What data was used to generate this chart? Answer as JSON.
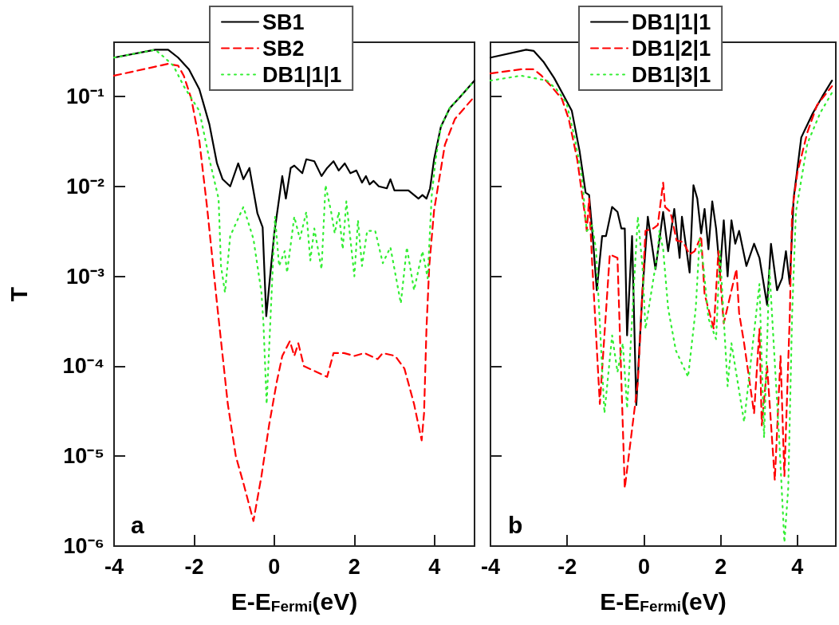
{
  "chart_data": [
    {
      "type": "line",
      "xlabel": "E-E$_{Fermi}$(eV)",
      "ylabel": "T",
      "annotations": [
        "a"
      ],
      "log": "y",
      "grid": false,
      "legend": "top",
      "xlim": [
        -4,
        5
      ],
      "xticks": [
        -4,
        -2,
        0,
        2,
        4
      ],
      "ylim": [
        1e-06,
        0.4
      ],
      "yticks": [
        {
          "value": 1e-06,
          "label": "10⁻⁶"
        },
        {
          "value": 1e-05,
          "label": "10⁻⁵"
        },
        {
          "value": 0.0001,
          "label": "10⁻⁴"
        },
        {
          "value": 0.001,
          "label": "10⁻³"
        },
        {
          "value": 0.01,
          "label": "10⁻²"
        },
        {
          "value": 0.1,
          "label": "10⁻¹"
        }
      ],
      "series": [
        {
          "name": "SB1",
          "color": "#000000",
          "line_style": "solid",
          "x": [
            -4,
            -2.97,
            -2.65,
            -2.4,
            -2.13,
            -1.87,
            -1.62,
            -1.43,
            -1.29,
            -1.1,
            -0.9,
            -0.77,
            -0.62,
            -0.42,
            -0.29,
            -0.2,
            0,
            0.2,
            0.29,
            0.41,
            0.5,
            0.7,
            0.8,
            1.0,
            1.18,
            1.32,
            1.48,
            1.61,
            1.76,
            1.9,
            2.05,
            2.19,
            2.29,
            2.38,
            2.48,
            2.61,
            2.81,
            2.9,
            3.0,
            3.16,
            3.35,
            3.49,
            3.6,
            3.7,
            3.8,
            3.89,
            3.99,
            4.16,
            4.38,
            4.65,
            5
          ],
          "values": [
            0.27,
            0.33,
            0.33,
            0.27,
            0.2,
            0.12,
            0.049,
            0.018,
            0.012,
            0.01,
            0.018,
            0.012,
            0.016,
            0.005,
            0.0035,
            0.00036,
            0.003,
            0.013,
            0.0073,
            0.016,
            0.017,
            0.014,
            0.02,
            0.019,
            0.013,
            0.016,
            0.019,
            0.015,
            0.018,
            0.014,
            0.015,
            0.011,
            0.013,
            0.0105,
            0.0115,
            0.01,
            0.0095,
            0.012,
            0.009,
            0.009,
            0.009,
            0.008,
            0.0073,
            0.008,
            0.0073,
            0.0095,
            0.02,
            0.046,
            0.074,
            0.1,
            0.15
          ]
        },
        {
          "name": "SB2",
          "color": "#ff0000",
          "line_style": "dashed",
          "x": [
            -4,
            -2.65,
            -2.4,
            -2.26,
            -2.07,
            -1.87,
            -1.68,
            -1.43,
            -1.16,
            -0.96,
            -0.77,
            -0.52,
            -0.32,
            -0.13,
            0.06,
            0.2,
            0.39,
            0.5,
            0.6,
            0.74,
            0.97,
            1.32,
            1.48,
            1.74,
            2.0,
            2.25,
            2.58,
            2.71,
            3.02,
            3.25,
            3.49,
            3.68,
            3.74,
            3.8,
            3.87,
            3.99,
            4.26,
            4.51,
            5
          ],
          "values": [
            0.17,
            0.23,
            0.22,
            0.17,
            0.094,
            0.032,
            0.006,
            0.0005,
            3.8e-05,
            1e-05,
            5e-06,
            1.9e-06,
            6e-06,
            2.2e-05,
            6.6e-05,
            0.00013,
            0.00019,
            0.00013,
            0.00018,
            0.0001,
            9e-05,
            7.6e-05,
            0.00014,
            0.00014,
            0.00013,
            0.00014,
            0.00012,
            0.00014,
            0.00013,
            9.4e-05,
            3.8e-05,
            1.5e-05,
            3e-05,
            0.00026,
            0.0013,
            0.0054,
            0.029,
            0.056,
            0.1
          ]
        },
        {
          "name": "DB1|1|1",
          "color": "#33ee33",
          "line_style": "dotted",
          "x": [
            -4,
            -2.97,
            -2.78,
            -2.52,
            -2.26,
            -1.87,
            -1.62,
            -1.39,
            -1.33,
            -1.23,
            -1.1,
            -0.77,
            -0.52,
            -0.32,
            -0.27,
            -0.19,
            -0.1,
            0.02,
            0.12,
            0.26,
            0.32,
            0.5,
            0.64,
            0.8,
            0.9,
            1.0,
            1.18,
            1.28,
            1.42,
            1.51,
            1.61,
            1.71,
            1.8,
            2.0,
            2.09,
            2.19,
            2.32,
            2.52,
            2.71,
            2.9,
            3.16,
            3.31,
            3.49,
            3.7,
            3.83,
            3.93,
            4.03,
            4.16,
            4.38,
            4.65,
            5
          ],
          "values": [
            0.27,
            0.33,
            0.28,
            0.22,
            0.13,
            0.069,
            0.02,
            0.0073,
            0.0013,
            0.00066,
            0.0028,
            0.0059,
            0.0026,
            0.00066,
            0.0003,
            3.8e-05,
            0.0003,
            0.0046,
            0.0013,
            0.0019,
            0.0011,
            0.0046,
            0.0026,
            0.0052,
            0.0015,
            0.0034,
            0.0012,
            0.0103,
            0.0052,
            0.003,
            0.0052,
            0.002,
            0.0068,
            0.001,
            0.0042,
            0.0013,
            0.0032,
            0.0032,
            0.0014,
            0.0021,
            0.0005,
            0.0021,
            0.0007,
            0.0019,
            0.00095,
            0.0078,
            0.02,
            0.046,
            0.074,
            0.1,
            0.15
          ]
        }
      ]
    },
    {
      "type": "line",
      "xlabel": "E-E$_{Fermi}$(eV)",
      "annotations": [
        "b"
      ],
      "log": "y",
      "grid": false,
      "legend": "top",
      "tick_labels": "x",
      "xlim": [
        -4,
        5
      ],
      "xticks": [
        -4,
        -2,
        0,
        2,
        4
      ],
      "ylim": [
        1e-06,
        0.4
      ],
      "yticks": [
        {
          "value": 1e-06,
          "label": null
        },
        {
          "value": 1e-05,
          "label": null
        },
        {
          "value": 0.0001,
          "label": null
        },
        {
          "value": 0.001,
          "label": null
        },
        {
          "value": 0.01,
          "label": null
        },
        {
          "value": 0.1,
          "label": null
        }
      ],
      "series": [
        {
          "name": "DB1|1|1",
          "color": "#000000",
          "line_style": "solid",
          "x": [
            -4,
            -3.07,
            -2.87,
            -2.61,
            -2.34,
            -2.08,
            -1.88,
            -1.68,
            -1.52,
            -1.43,
            -1.33,
            -1.23,
            -1.09,
            -0.99,
            -0.83,
            -0.69,
            -0.59,
            -0.5,
            -0.44,
            -0.31,
            -0.2,
            -0.04,
            0.1,
            0.3,
            0.5,
            0.63,
            0.79,
            0.93,
            0.99,
            1.19,
            1.29,
            1.39,
            1.49,
            1.58,
            1.68,
            1.78,
            1.88,
            1.98,
            2.08,
            2.18,
            2.28,
            2.38,
            2.48,
            2.67,
            2.87,
            3.01,
            3.21,
            3.31,
            3.47,
            3.6,
            3.7,
            3.8,
            3.9,
            4.1,
            4.4,
            4.65,
            4.9
          ],
          "values": [
            0.27,
            0.33,
            0.32,
            0.24,
            0.16,
            0.1,
            0.069,
            0.025,
            0.0085,
            0.008,
            0.0026,
            0.0007,
            0.0028,
            0.0028,
            0.0059,
            0.0052,
            0.0034,
            0.0034,
            0.00022,
            0.0028,
            3.7e-05,
            0.00066,
            0.0046,
            0.0012,
            0.0052,
            0.0019,
            0.0056,
            0.0016,
            0.0046,
            0.0011,
            0.0103,
            0.0073,
            0.003,
            0.0056,
            0.002,
            0.0068,
            0.0034,
            0.0011,
            0.0042,
            0.001,
            0.0042,
            0.0023,
            0.0032,
            0.0013,
            0.0023,
            0.0016,
            0.00048,
            0.0023,
            0.0007,
            0.00095,
            0.0019,
            0.00082,
            0.0073,
            0.035,
            0.065,
            0.1,
            0.15
          ]
        },
        {
          "name": "DB1|2|1",
          "color": "#ff0000",
          "line_style": "dashed",
          "x": [
            -4,
            -3.2,
            -2.87,
            -2.67,
            -2.42,
            -2.14,
            -1.96,
            -1.74,
            -1.55,
            -1.49,
            -1.43,
            -1.35,
            -1.15,
            -0.89,
            -0.69,
            -0.5,
            -0.16,
            0.04,
            0.24,
            0.36,
            0.5,
            0.55,
            0.69,
            0.85,
            1.02,
            1.19,
            1.32,
            1.49,
            1.58,
            1.82,
            1.94,
            2.04,
            2.08,
            2.41,
            2.48,
            2.61,
            2.87,
            3.01,
            3.07,
            3.21,
            3.41,
            3.56,
            3.66,
            3.8,
            3.86,
            4.0,
            4.26,
            4.51,
            4.9
          ],
          "values": [
            0.18,
            0.2,
            0.2,
            0.17,
            0.13,
            0.094,
            0.056,
            0.02,
            0.0052,
            0.0032,
            0.0073,
            0.0014,
            3.8e-05,
            0.00175,
            0.0016,
            4.4e-06,
            6.6e-05,
            0.0032,
            0.0034,
            0.0037,
            0.011,
            0.0059,
            0.0052,
            0.0025,
            0.0024,
            0.00175,
            0.0019,
            0.0028,
            0.00063,
            0.00026,
            0.0019,
            0.00048,
            0.0003,
            0.0012,
            0.00039,
            0.00018,
            3e-05,
            0.00026,
            2.2e-05,
            0.0001,
            5.4e-06,
            0.00013,
            6e-06,
            0.00036,
            0.0052,
            0.0143,
            0.04,
            0.08,
            0.13
          ]
        },
        {
          "name": "DB1|3|1",
          "color": "#33ee33",
          "line_style": "dotted",
          "x": [
            -4,
            -3.2,
            -2.87,
            -2.53,
            -2.28,
            -2.02,
            -1.82,
            -1.62,
            -1.49,
            -1.35,
            -1.25,
            -1.03,
            -0.83,
            -0.69,
            -0.55,
            -0.44,
            -0.16,
            -0.04,
            0.04,
            0.36,
            0.4,
            0.5,
            0.63,
            0.83,
            1.15,
            1.35,
            1.45,
            1.55,
            1.68,
            1.88,
            1.98,
            2.18,
            2.28,
            2.61,
            3.01,
            3.13,
            3.27,
            3.53,
            3.66,
            3.76,
            3.86,
            3.96,
            4.26,
            4.59,
            4.9
          ],
          "values": [
            0.15,
            0.17,
            0.16,
            0.15,
            0.12,
            0.085,
            0.037,
            0.013,
            0.0032,
            0.0037,
            0.002,
            3e-05,
            0.00022,
            8.6e-05,
            0.00018,
            3.4e-05,
            0.0046,
            0.0013,
            0.00026,
            0.0019,
            0.0032,
            0.002,
            0.00044,
            0.00015,
            7.6e-05,
            0.00044,
            0.0026,
            0.0013,
            0.00034,
            0.0002,
            0.0019,
            6e-05,
            0.00018,
            2.4e-05,
            0.00082,
            1.6e-05,
            0.0012,
            1.4e-05,
            1.1e-06,
            4.4e-06,
            0.00036,
            0.0052,
            0.03,
            0.065,
            0.11
          ]
        }
      ]
    }
  ]
}
